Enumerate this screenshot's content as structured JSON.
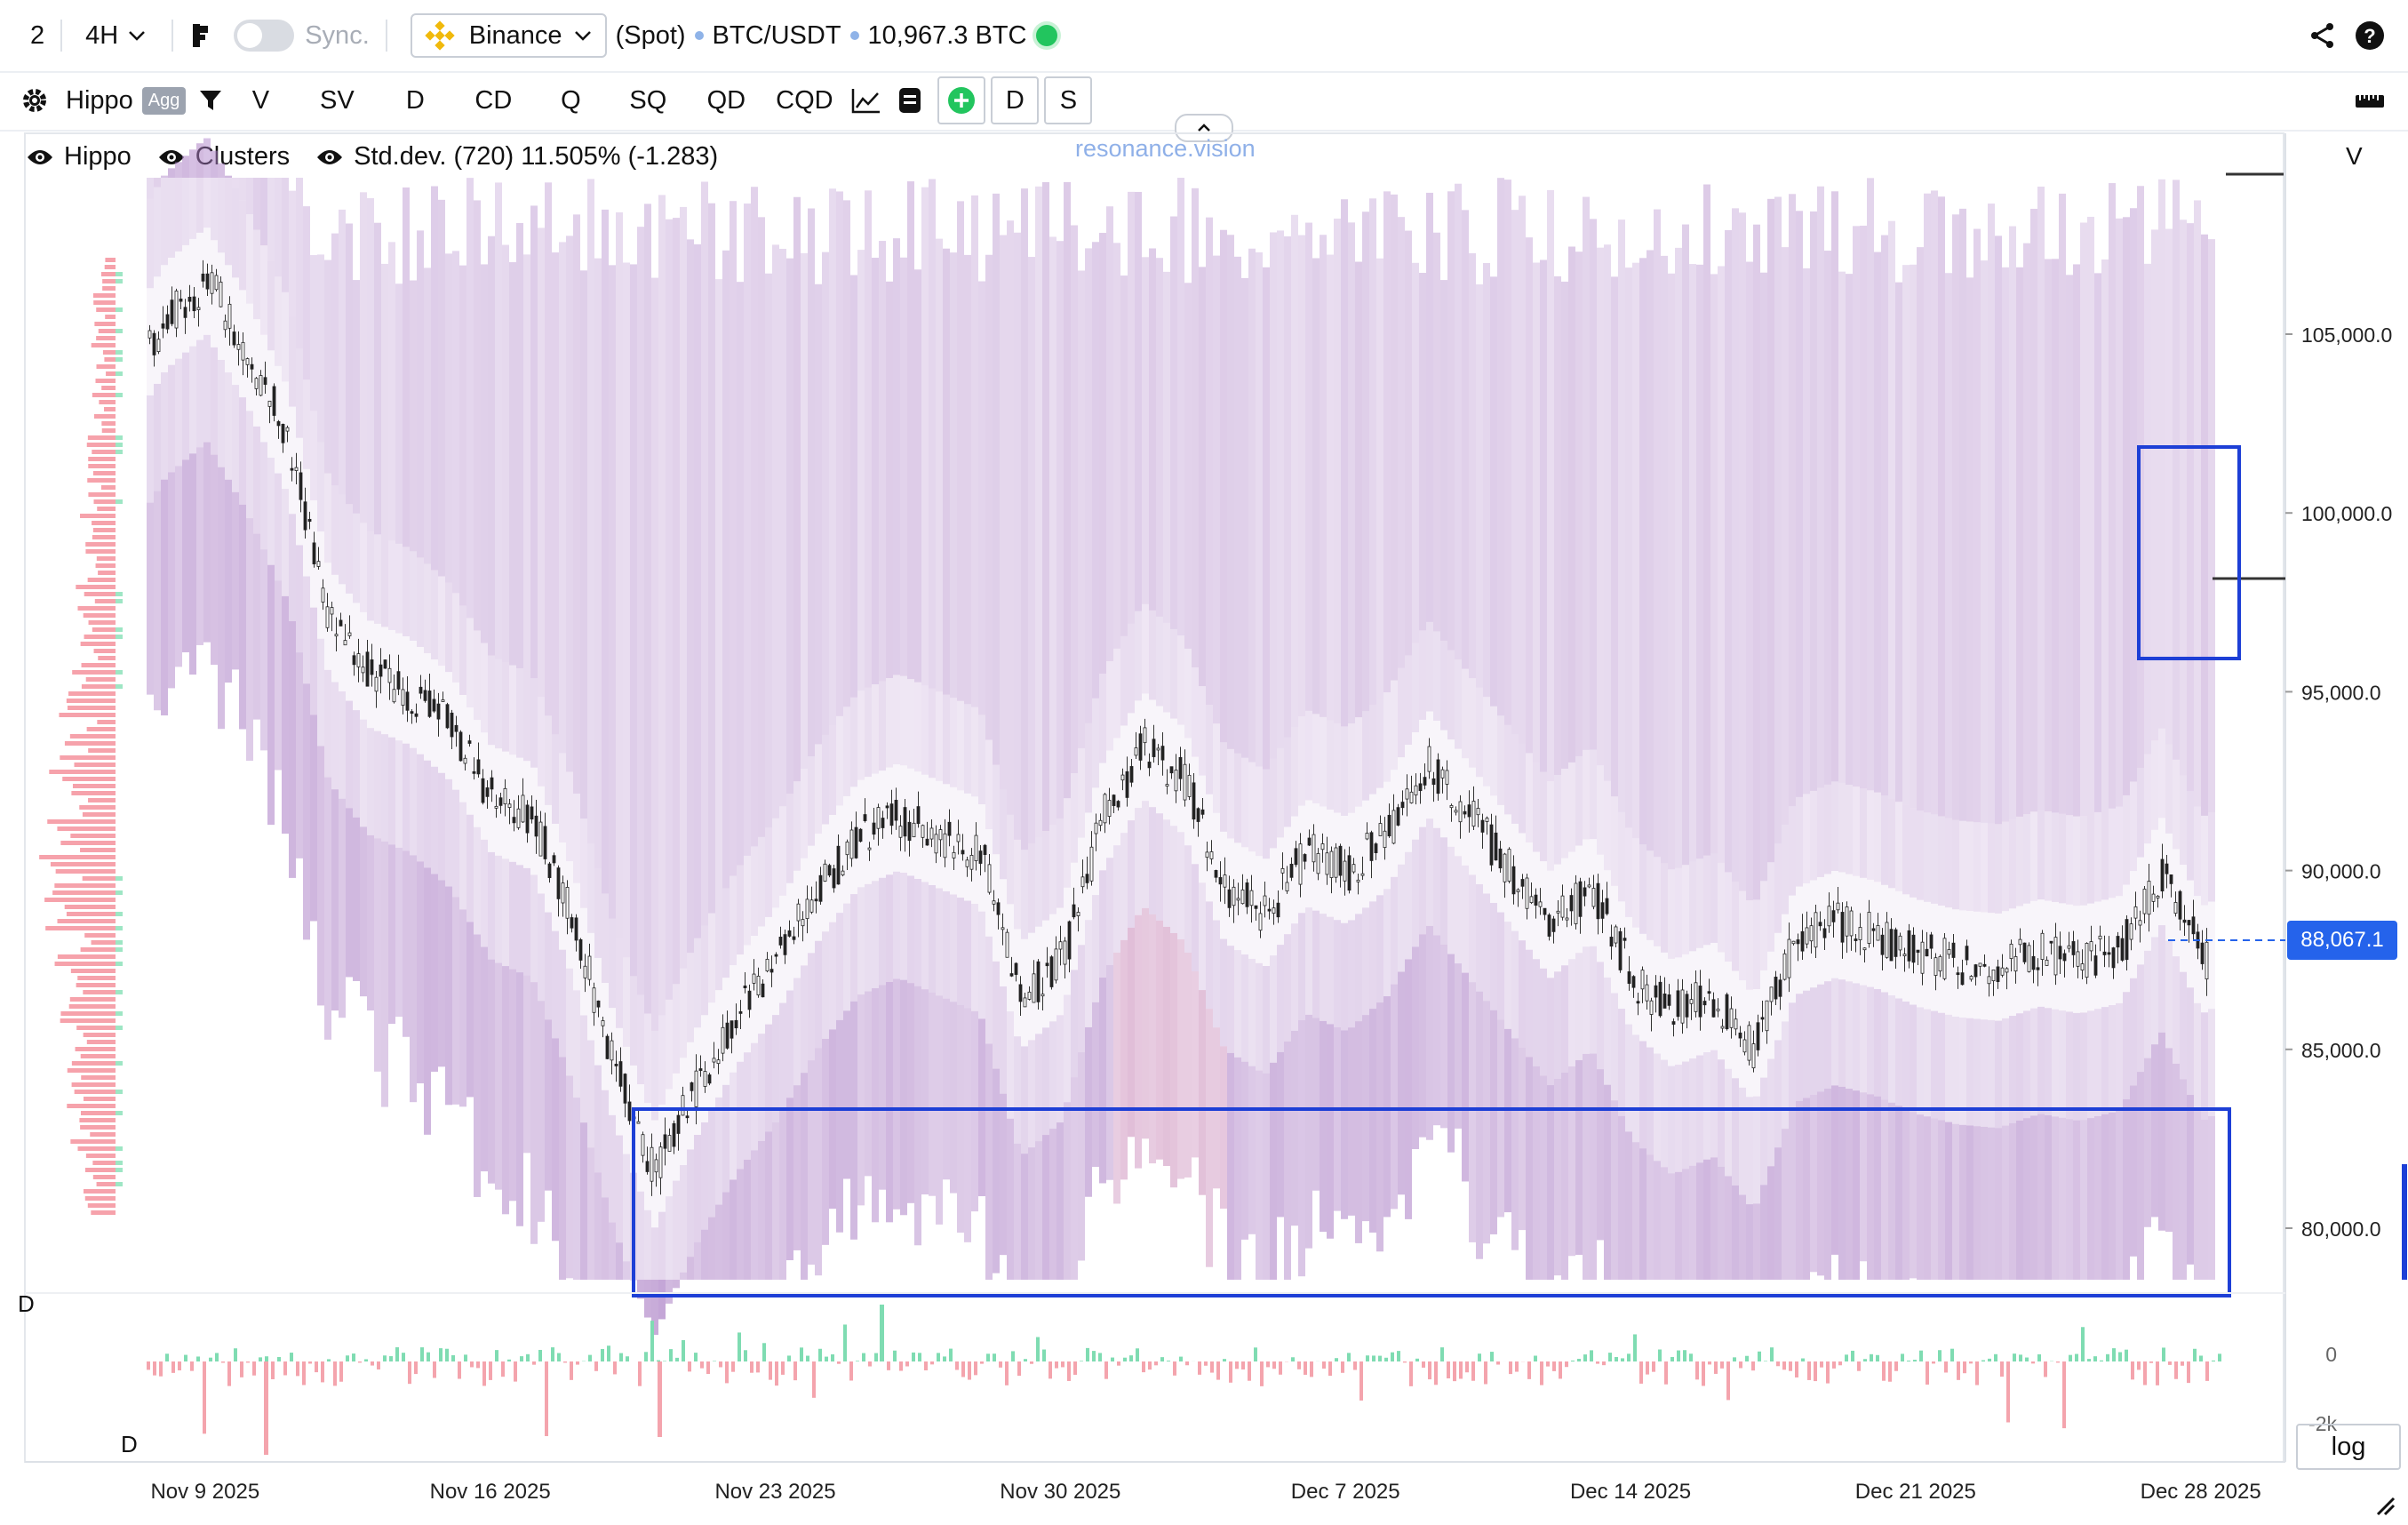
{
  "toolbar": {
    "layout_count": "2",
    "timeframe": "4H",
    "sync_label": "Sync.",
    "exchange": "Binance",
    "market_type": "(Spot)",
    "pair": "BTC/USDT",
    "volume": "10,967.3 BTC"
  },
  "indicators": {
    "name": "Hippo",
    "agg_label": "Agg",
    "items": [
      "V",
      "SV",
      "D",
      "CD",
      "Q",
      "SQ",
      "QD",
      "CQD"
    ],
    "d_label": "D",
    "s_label": "S"
  },
  "legend": {
    "hippo": "Hippo",
    "clusters": "Clusters",
    "stddev": "Std.dev. (720) 11.505% (-1.283)"
  },
  "watermark": "resonance.vision",
  "right_header": "V",
  "panel_labels": {
    "d_top": "D",
    "d_bottom": "D"
  },
  "log_button": "log",
  "colors": {
    "accent": "#2563eb",
    "up": "#5fd3a3",
    "down": "#f39aa6",
    "cloud": "#b58ccb",
    "live": "#22c55e"
  },
  "icons": [
    "chevron-down-icon",
    "binance-logo-icon",
    "gear-icon",
    "filter-icon",
    "line-chart-icon",
    "document-icon",
    "plus-circle-icon",
    "share-icon",
    "help-icon",
    "ruler-icon",
    "eye-icon",
    "chevron-up-icon",
    "resize-icon"
  ],
  "chart_data": {
    "type": "candlestick",
    "title": "BTC/USDT",
    "x_ticks": [
      "Nov 9 2025",
      "Nov 16 2025",
      "Nov 23 2025",
      "Nov 30 2025",
      "Dec 7 2025",
      "Dec 14 2025",
      "Dec 21 2025",
      "Dec 28 2025"
    ],
    "y_ticks": [
      "80,000.0",
      "85,000.0",
      "90,000.0",
      "95,000.0",
      "100,000.0",
      "105,000.0"
    ],
    "ylim": [
      77500,
      110500
    ],
    "x_range": [
      "2025-11-08",
      "2026-01-01"
    ],
    "current_price": "88,067.1",
    "current_price_value": 88067.1,
    "close_path": [
      [
        "2025-11-08",
        101800
      ],
      [
        "2025-11-10",
        105500
      ],
      [
        "2025-11-11",
        106500
      ],
      [
        "2025-11-12",
        104500
      ],
      [
        "2025-11-13",
        102000
      ],
      [
        "2025-11-14",
        97000
      ],
      [
        "2025-11-15",
        95500
      ],
      [
        "2025-11-16",
        95000
      ],
      [
        "2025-11-17",
        94000
      ],
      [
        "2025-11-18",
        92000
      ],
      [
        "2025-11-19",
        91500
      ],
      [
        "2025-11-20",
        88500
      ],
      [
        "2025-11-21",
        84500
      ],
      [
        "2025-11-22",
        81500
      ],
      [
        "2025-11-23",
        84000
      ],
      [
        "2025-11-24",
        86000
      ],
      [
        "2025-11-25",
        87500
      ],
      [
        "2025-11-26",
        89500
      ],
      [
        "2025-11-27",
        91000
      ],
      [
        "2025-11-28",
        91500
      ],
      [
        "2025-11-29",
        91000
      ],
      [
        "2025-11-30",
        90500
      ],
      [
        "2025-12-01",
        86500
      ],
      [
        "2025-12-02",
        87500
      ],
      [
        "2025-12-03",
        91500
      ],
      [
        "2025-12-04",
        93500
      ],
      [
        "2025-12-05",
        92500
      ],
      [
        "2025-12-06",
        89500
      ],
      [
        "2025-12-07",
        88800
      ],
      [
        "2025-12-08",
        90500
      ],
      [
        "2025-12-09",
        90000
      ],
      [
        "2025-12-10",
        91000
      ],
      [
        "2025-12-11",
        93000
      ],
      [
        "2025-12-12",
        91500
      ],
      [
        "2025-12-13",
        90000
      ],
      [
        "2025-12-14",
        88500
      ],
      [
        "2025-12-15",
        89500
      ],
      [
        "2025-12-16",
        87000
      ],
      [
        "2025-12-17",
        86000
      ],
      [
        "2025-12-18",
        86500
      ],
      [
        "2025-12-19",
        85000
      ],
      [
        "2025-12-20",
        88000
      ],
      [
        "2025-12-21",
        88500
      ],
      [
        "2025-12-22",
        88200
      ],
      [
        "2025-12-23",
        87700
      ],
      [
        "2025-12-24",
        87400
      ],
      [
        "2025-12-25",
        87300
      ],
      [
        "2025-12-26",
        87700
      ],
      [
        "2025-12-27",
        87500
      ],
      [
        "2025-12-28",
        87800
      ],
      [
        "2025-12-29",
        90000
      ],
      [
        "2025-12-30",
        87500
      ],
      [
        "2025-12-31",
        88067
      ]
    ],
    "delta_panel": {
      "y_ticks": [
        "0",
        "-2k"
      ]
    }
  }
}
